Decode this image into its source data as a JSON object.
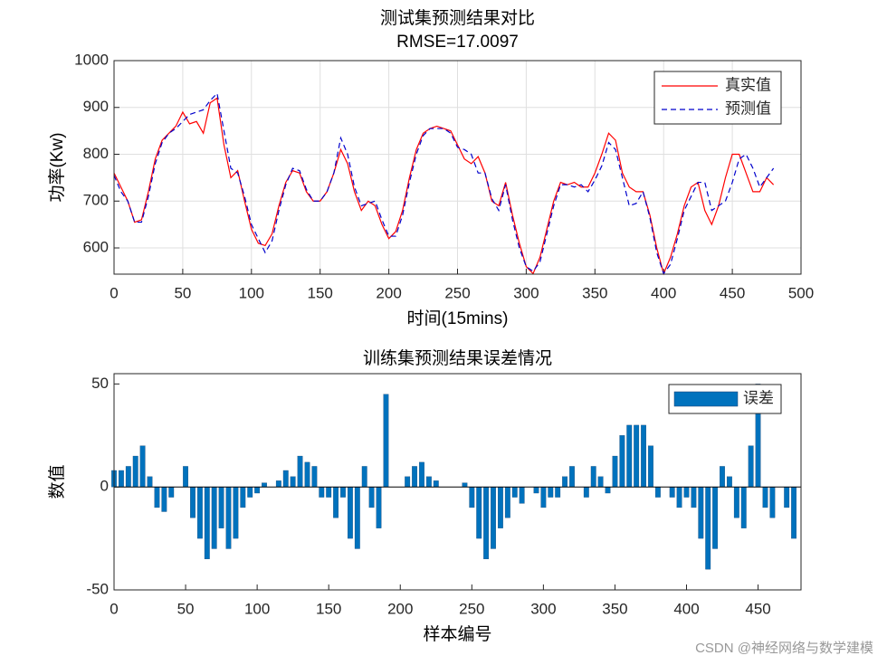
{
  "chart_data": [
    {
      "type": "line",
      "title": "测试集预测结果对比",
      "subtitle": "RMSE=17.0097",
      "xlabel": "时间(15mins)",
      "ylabel": "功率(Kw)",
      "x": [
        0,
        5,
        10,
        15,
        20,
        25,
        30,
        35,
        40,
        45,
        50,
        55,
        60,
        65,
        70,
        75,
        80,
        85,
        90,
        95,
        100,
        105,
        110,
        115,
        120,
        125,
        130,
        135,
        140,
        145,
        150,
        155,
        160,
        165,
        170,
        175,
        180,
        185,
        190,
        195,
        200,
        205,
        210,
        215,
        220,
        225,
        230,
        235,
        240,
        245,
        250,
        255,
        260,
        265,
        270,
        275,
        280,
        285,
        290,
        295,
        300,
        305,
        310,
        315,
        320,
        325,
        330,
        335,
        340,
        345,
        350,
        355,
        360,
        365,
        370,
        375,
        380,
        385,
        390,
        395,
        400,
        405,
        410,
        415,
        420,
        425,
        430,
        435,
        440,
        445,
        450,
        455,
        460,
        465,
        470,
        475,
        480
      ],
      "series": [
        {
          "name": "真实值",
          "color": "#ff0000",
          "dashed": false,
          "values": [
            760,
            730,
            700,
            655,
            660,
            720,
            790,
            830,
            845,
            860,
            890,
            865,
            870,
            845,
            910,
            920,
            820,
            750,
            765,
            700,
            640,
            610,
            605,
            630,
            690,
            740,
            765,
            760,
            720,
            700,
            700,
            720,
            760,
            810,
            780,
            720,
            680,
            700,
            690,
            650,
            620,
            635,
            680,
            750,
            810,
            845,
            855,
            860,
            855,
            850,
            820,
            790,
            780,
            795,
            760,
            700,
            690,
            740,
            670,
            610,
            560,
            545,
            580,
            640,
            700,
            740,
            735,
            740,
            730,
            730,
            760,
            800,
            845,
            830,
            760,
            730,
            720,
            720,
            670,
            600,
            545,
            580,
            630,
            690,
            730,
            740,
            680,
            650,
            690,
            750,
            800,
            800,
            760,
            720,
            720,
            750,
            735
          ]
        },
        {
          "name": "预测值",
          "color": "#0000cc",
          "dashed": true,
          "values": [
            755,
            720,
            700,
            655,
            655,
            710,
            780,
            825,
            845,
            855,
            870,
            885,
            890,
            895,
            915,
            930,
            850,
            770,
            760,
            710,
            650,
            620,
            590,
            615,
            680,
            735,
            770,
            765,
            725,
            700,
            700,
            720,
            760,
            835,
            800,
            730,
            690,
            695,
            700,
            660,
            625,
            625,
            670,
            740,
            800,
            840,
            855,
            855,
            855,
            845,
            815,
            810,
            800,
            760,
            760,
            705,
            680,
            735,
            660,
            600,
            560,
            550,
            570,
            630,
            690,
            735,
            735,
            730,
            735,
            720,
            745,
            775,
            825,
            810,
            750,
            690,
            695,
            720,
            665,
            590,
            545,
            565,
            620,
            680,
            710,
            740,
            740,
            680,
            690,
            700,
            740,
            790,
            800,
            770,
            730,
            750,
            770
          ]
        }
      ],
      "xlim": [
        0,
        500
      ],
      "xticks": [
        0,
        50,
        100,
        150,
        200,
        250,
        300,
        350,
        400,
        450,
        500
      ],
      "ylim": [
        544,
        1000
      ],
      "yticks": [
        600,
        700,
        800,
        900,
        1000
      ],
      "grid": true,
      "legend": "upper right"
    },
    {
      "type": "bar",
      "title": "训练集预测结果误差情况",
      "xlabel": "样本编号",
      "ylabel": "数值",
      "x": [
        0,
        5,
        10,
        15,
        20,
        25,
        30,
        35,
        40,
        45,
        50,
        55,
        60,
        65,
        70,
        75,
        80,
        85,
        90,
        95,
        100,
        105,
        110,
        115,
        120,
        125,
        130,
        135,
        140,
        145,
        150,
        155,
        160,
        165,
        170,
        175,
        180,
        185,
        190,
        195,
        200,
        205,
        210,
        215,
        220,
        225,
        230,
        235,
        240,
        245,
        250,
        255,
        260,
        265,
        270,
        275,
        280,
        285,
        290,
        295,
        300,
        305,
        310,
        315,
        320,
        325,
        330,
        335,
        340,
        345,
        350,
        355,
        360,
        365,
        370,
        375,
        380,
        385,
        390,
        395,
        400,
        405,
        410,
        415,
        420,
        425,
        430,
        435,
        440,
        445,
        450,
        455,
        460,
        465,
        470,
        475
      ],
      "series": [
        {
          "name": "误差",
          "color": "#0072bd",
          "values": [
            8,
            8,
            10,
            15,
            20,
            5,
            -10,
            -12,
            -5,
            0,
            10,
            -15,
            -25,
            -35,
            -30,
            -20,
            -30,
            -25,
            -10,
            -5,
            -3,
            2,
            0,
            3,
            8,
            5,
            15,
            12,
            10,
            -5,
            -5,
            -15,
            -5,
            -25,
            -30,
            10,
            -10,
            -20,
            45,
            0,
            0,
            5,
            10,
            12,
            5,
            3,
            0,
            0,
            0,
            2,
            -10,
            -25,
            -35,
            -30,
            -20,
            -15,
            -5,
            -8,
            0,
            -3,
            -10,
            -5,
            -5,
            5,
            10,
            0,
            -5,
            10,
            5,
            -3,
            15,
            25,
            30,
            30,
            30,
            20,
            -5,
            0,
            -5,
            -10,
            -5,
            -10,
            -25,
            -40,
            -30,
            10,
            5,
            -15,
            -20,
            20,
            50,
            -10,
            -15,
            0,
            -10,
            -25
          ]
        }
      ],
      "xlim": [
        0,
        480
      ],
      "xticks": [
        0,
        50,
        100,
        150,
        200,
        250,
        300,
        350,
        400,
        450
      ],
      "ylim": [
        -50,
        55
      ],
      "yticks": [
        -50,
        0,
        50
      ],
      "grid": false,
      "legend": "upper right"
    }
  ],
  "watermark": "CSDN @神经网络与数学建模"
}
